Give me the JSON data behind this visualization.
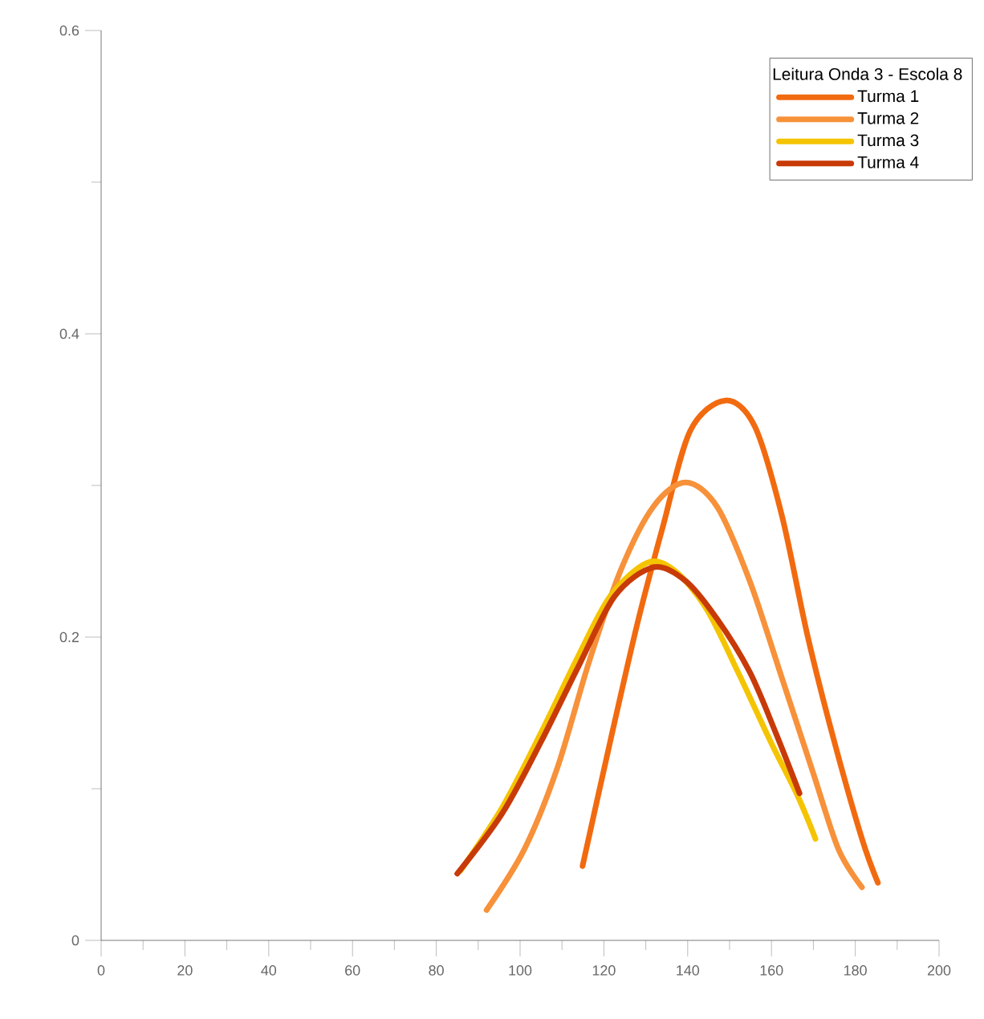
{
  "chart_data": {
    "type": "line",
    "legend_title": "Leitura  Onda 3 - Escola 8",
    "legend": "top right",
    "grid": false,
    "marker": "none",
    "line_style": "solid",
    "xlim": [
      0,
      200
    ],
    "xticks": [
      0,
      20,
      40,
      60,
      80,
      100,
      120,
      140,
      160,
      180,
      200
    ],
    "ylim": [
      0,
      0.6
    ],
    "yticks": [
      0,
      0.2,
      0.4,
      0.6
    ],
    "series": [
      {
        "name": "Turma 1",
        "color": "#f26a0f",
        "x": [
          114.9,
          121.5,
          128,
          134,
          140.6,
          149,
          156,
          162.5,
          168.6,
          175,
          181.6,
          185.4
        ],
        "values": [
          0.049,
          0.131,
          0.209,
          0.272,
          0.336,
          0.356,
          0.339,
          0.28,
          0.201,
          0.131,
          0.067,
          0.038
        ]
      },
      {
        "name": "Turma 2",
        "color": "#f7913a",
        "x": [
          92,
          101,
          108.8,
          116.5,
          124,
          131.8,
          139.5,
          147,
          154.8,
          162.5,
          170,
          176,
          181.6
        ],
        "values": [
          0.02,
          0.06,
          0.113,
          0.184,
          0.244,
          0.286,
          0.302,
          0.286,
          0.237,
          0.173,
          0.11,
          0.06,
          0.035
        ]
      },
      {
        "name": "Turma 3",
        "color": "#f5c400",
        "x": [
          85.8,
          95.8,
          105,
          113.8,
          121.5,
          130.3,
          136.8,
          144.4,
          152,
          159.8,
          166.3,
          170.5
        ],
        "values": [
          0.046,
          0.088,
          0.137,
          0.187,
          0.227,
          0.249,
          0.244,
          0.219,
          0.177,
          0.131,
          0.095,
          0.067
        ]
      },
      {
        "name": "Turma 4",
        "color": "#c83a08",
        "x": [
          85,
          95.8,
          105,
          113.8,
          122.6,
          131.8,
          139.5,
          147,
          154.8,
          161,
          166.7
        ],
        "values": [
          0.044,
          0.084,
          0.131,
          0.18,
          0.227,
          0.246,
          0.237,
          0.212,
          0.177,
          0.137,
          0.097
        ]
      }
    ]
  }
}
